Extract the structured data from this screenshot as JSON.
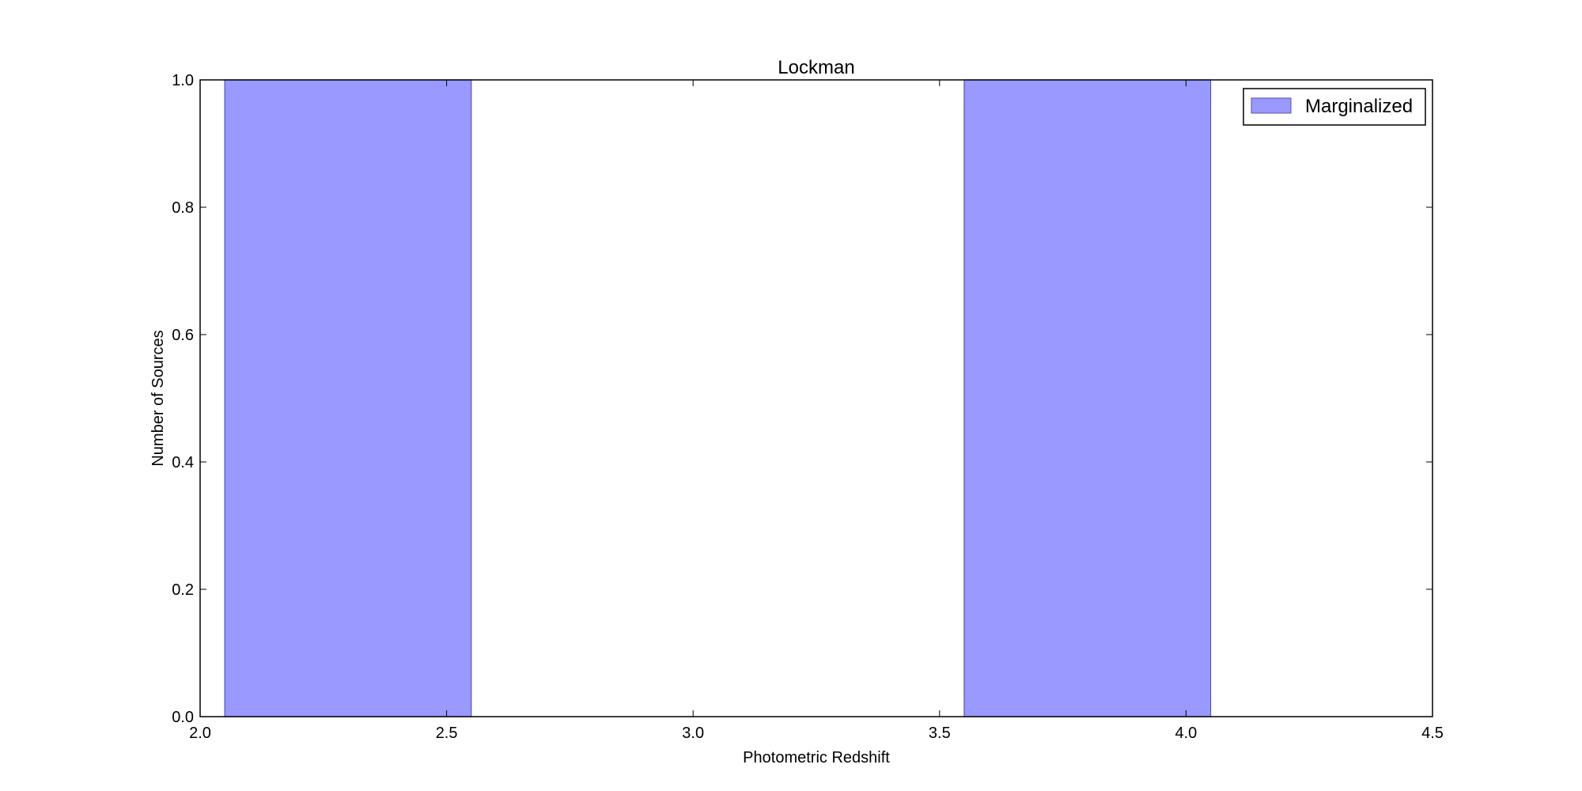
{
  "chart_data": {
    "type": "bar",
    "title": "Lockman",
    "xlabel": "Photometric Redshift",
    "ylabel": "Number of Sources",
    "xlim": [
      2.0,
      4.5
    ],
    "ylim": [
      0.0,
      1.0
    ],
    "xticks": [
      "2.0",
      "2.5",
      "3.0",
      "3.5",
      "4.0",
      "4.5"
    ],
    "yticks": [
      "0.0",
      "0.2",
      "0.4",
      "0.6",
      "0.8",
      "1.0"
    ],
    "grid": false,
    "legend_position": "top-right",
    "series": [
      {
        "name": "Marginalized",
        "color": "#9999ff",
        "bins": [
          {
            "x0": 2.05,
            "x1": 2.55,
            "value": 1
          },
          {
            "x0": 3.55,
            "x1": 4.05,
            "value": 1
          }
        ]
      }
    ]
  }
}
